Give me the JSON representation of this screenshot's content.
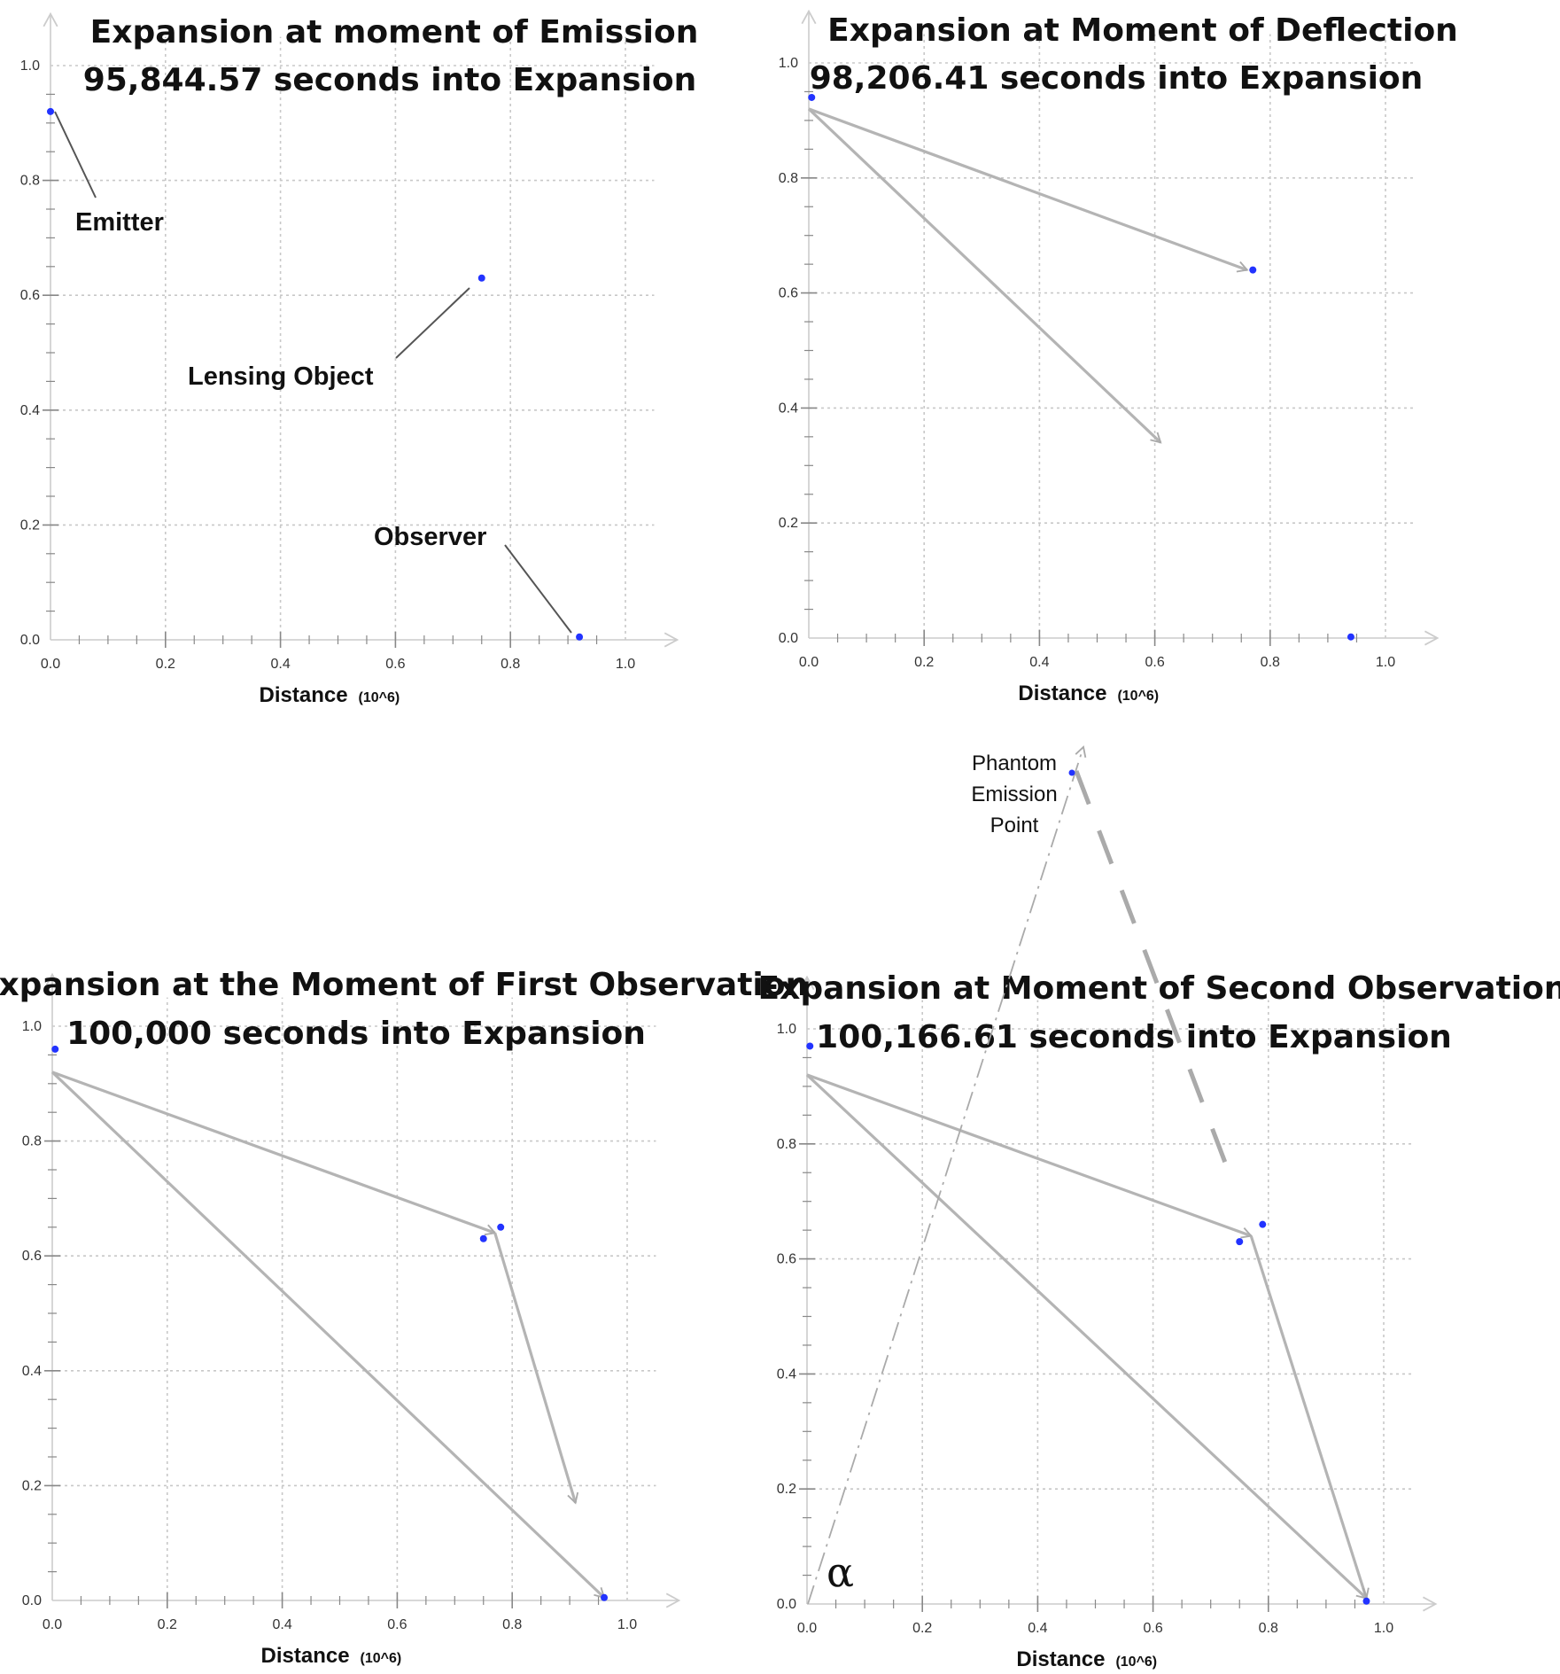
{
  "panels": [
    {
      "id": "emission",
      "title_line1": "Expansion at moment of Emission",
      "title_line2": "95,844.57 seconds into Expansion",
      "xlabel": "Distance",
      "xunit": "(10^6)",
      "xticks": [
        "0.0",
        "0.2",
        "0.4",
        "0.6",
        "0.8",
        "1.0"
      ],
      "yticks": [
        "0.0",
        "0.2",
        "0.4",
        "0.6",
        "0.8",
        "1.0"
      ],
      "points": [
        {
          "name": "emitter",
          "x": 0.0,
          "y": 0.92
        },
        {
          "name": "lensing-object",
          "x": 0.75,
          "y": 0.63
        },
        {
          "name": "observer",
          "x": 0.92,
          "y": 0.005
        }
      ],
      "annotations": [
        {
          "name": "emitter-label",
          "text": "Emitter"
        },
        {
          "name": "lensing-object-label",
          "text": "Lensing Object"
        },
        {
          "name": "observer-label",
          "text": "Observer"
        }
      ]
    },
    {
      "id": "deflection",
      "title_line1": "Expansion at Moment of Deflection",
      "title_line2": "98,206.41 seconds into Expansion",
      "xlabel": "Distance",
      "xunit": "(10^6)",
      "xticks": [
        "0.0",
        "0.2",
        "0.4",
        "0.6",
        "0.8",
        "1.0"
      ],
      "yticks": [
        "0.0",
        "0.2",
        "0.4",
        "0.6",
        "0.8",
        "1.0"
      ],
      "points": [
        {
          "name": "emitter",
          "x": 0.005,
          "y": 0.94
        },
        {
          "name": "lensing-object",
          "x": 0.77,
          "y": 0.64
        },
        {
          "name": "observer",
          "x": 0.94,
          "y": 0.002
        }
      ],
      "rays": [
        {
          "name": "ray-to-lens",
          "from": [
            0.0,
            0.92
          ],
          "to": [
            0.76,
            0.64
          ]
        },
        {
          "name": "ray-straight",
          "from": [
            0.0,
            0.92
          ],
          "to": [
            0.61,
            0.34
          ]
        }
      ]
    },
    {
      "id": "first-observation",
      "title_line1": "Expansion at the Moment of First Observation",
      "title_line2": "100,000 seconds into Expansion",
      "xlabel": "Distance",
      "xunit": "(10^6)",
      "xticks": [
        "0.0",
        "0.2",
        "0.4",
        "0.6",
        "0.8",
        "1.0"
      ],
      "yticks": [
        "0.0",
        "0.2",
        "0.4",
        "0.6",
        "0.8",
        "1.0"
      ],
      "points": [
        {
          "name": "emitter",
          "x": 0.005,
          "y": 0.96
        },
        {
          "name": "lensing-object",
          "x": 0.78,
          "y": 0.65
        },
        {
          "name": "lensing-object-earlier",
          "x": 0.75,
          "y": 0.63
        },
        {
          "name": "observer",
          "x": 0.96,
          "y": 0.005
        }
      ],
      "rays": [
        {
          "name": "ray-to-lens",
          "from": [
            0.0,
            0.92
          ],
          "to": [
            0.77,
            0.64
          ]
        },
        {
          "name": "ray-deflected",
          "from": [
            0.77,
            0.64
          ],
          "to": [
            0.91,
            0.17
          ]
        },
        {
          "name": "ray-direct",
          "from": [
            0.0,
            0.92
          ],
          "to": [
            0.96,
            0.005
          ]
        }
      ]
    },
    {
      "id": "second-observation",
      "title_line1": "Expansion at Moment of Second Observation",
      "title_line2": "100,166.61 seconds into Expansion",
      "xlabel": "Distance",
      "xunit": "(10^6)",
      "xticks": [
        "0.0",
        "0.2",
        "0.4",
        "0.6",
        "0.8",
        "1.0"
      ],
      "yticks": [
        "0.0",
        "0.2",
        "0.4",
        "0.6",
        "0.8",
        "1.0"
      ],
      "points": [
        {
          "name": "emitter",
          "x": 0.005,
          "y": 0.97
        },
        {
          "name": "lensing-object",
          "x": 0.79,
          "y": 0.66
        },
        {
          "name": "lensing-object-earlier",
          "x": 0.75,
          "y": 0.63
        },
        {
          "name": "observer",
          "x": 0.97,
          "y": 0.005
        }
      ],
      "rays": [
        {
          "name": "ray-to-lens",
          "from": [
            0.0,
            0.92
          ],
          "to": [
            0.77,
            0.64
          ]
        },
        {
          "name": "ray-deflected",
          "from": [
            0.77,
            0.64
          ],
          "to": [
            0.97,
            0.01
          ]
        },
        {
          "name": "ray-direct",
          "from": [
            0.0,
            0.92
          ],
          "to": [
            0.97,
            0.01
          ]
        }
      ],
      "phantom_label": [
        "Phantom",
        "Emission",
        "Point"
      ],
      "alpha_label": "α"
    }
  ],
  "colors": {
    "point": "#2233ff",
    "ray": "#b4b4b4",
    "grid": "#c8c8c8",
    "axis": "#cccccc",
    "leader": "#555555"
  }
}
